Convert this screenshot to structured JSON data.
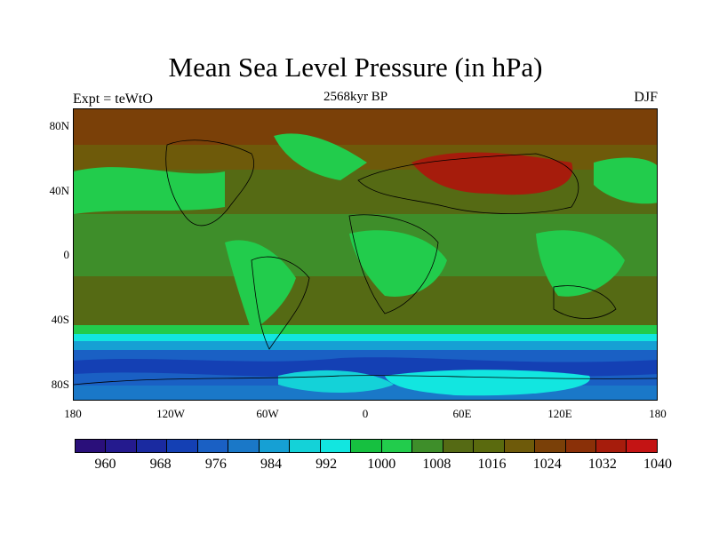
{
  "header": {
    "title": "Mean Sea Level Pressure (in hPa)",
    "subtitle": "2568kyr BP",
    "left_label": "Expt = teWtO",
    "right_label": "DJF"
  },
  "map": {
    "lat_labels": [
      "80N",
      "40N",
      "0",
      "40S",
      "80S"
    ],
    "lon_labels": [
      "180",
      "120W",
      "60W",
      "0",
      "60E",
      "120E",
      "180"
    ],
    "lat_values": [
      80,
      40,
      0,
      -40,
      -80
    ],
    "lon_values": [
      -180,
      -120,
      -60,
      0,
      60,
      120,
      180
    ],
    "lat_range": [
      -90,
      90
    ],
    "lon_range": [
      -180,
      180
    ]
  },
  "colorbar": {
    "colors": [
      "#2a0f7a",
      "#241a8e",
      "#1a2aa0",
      "#1440b4",
      "#1a60c4",
      "#1a78c8",
      "#16a0d4",
      "#14d2d8",
      "#12e6e0",
      "#16c040",
      "#22cc4c",
      "#3e8e2a",
      "#556a14",
      "#5a6a0e",
      "#6e5a0a",
      "#7a4008",
      "#8a3008",
      "#a61c0c",
      "#c41414"
    ],
    "labels": [
      "960",
      "968",
      "976",
      "984",
      "992",
      "1000",
      "1008",
      "1016",
      "1024",
      "1032",
      "1040"
    ]
  }
}
